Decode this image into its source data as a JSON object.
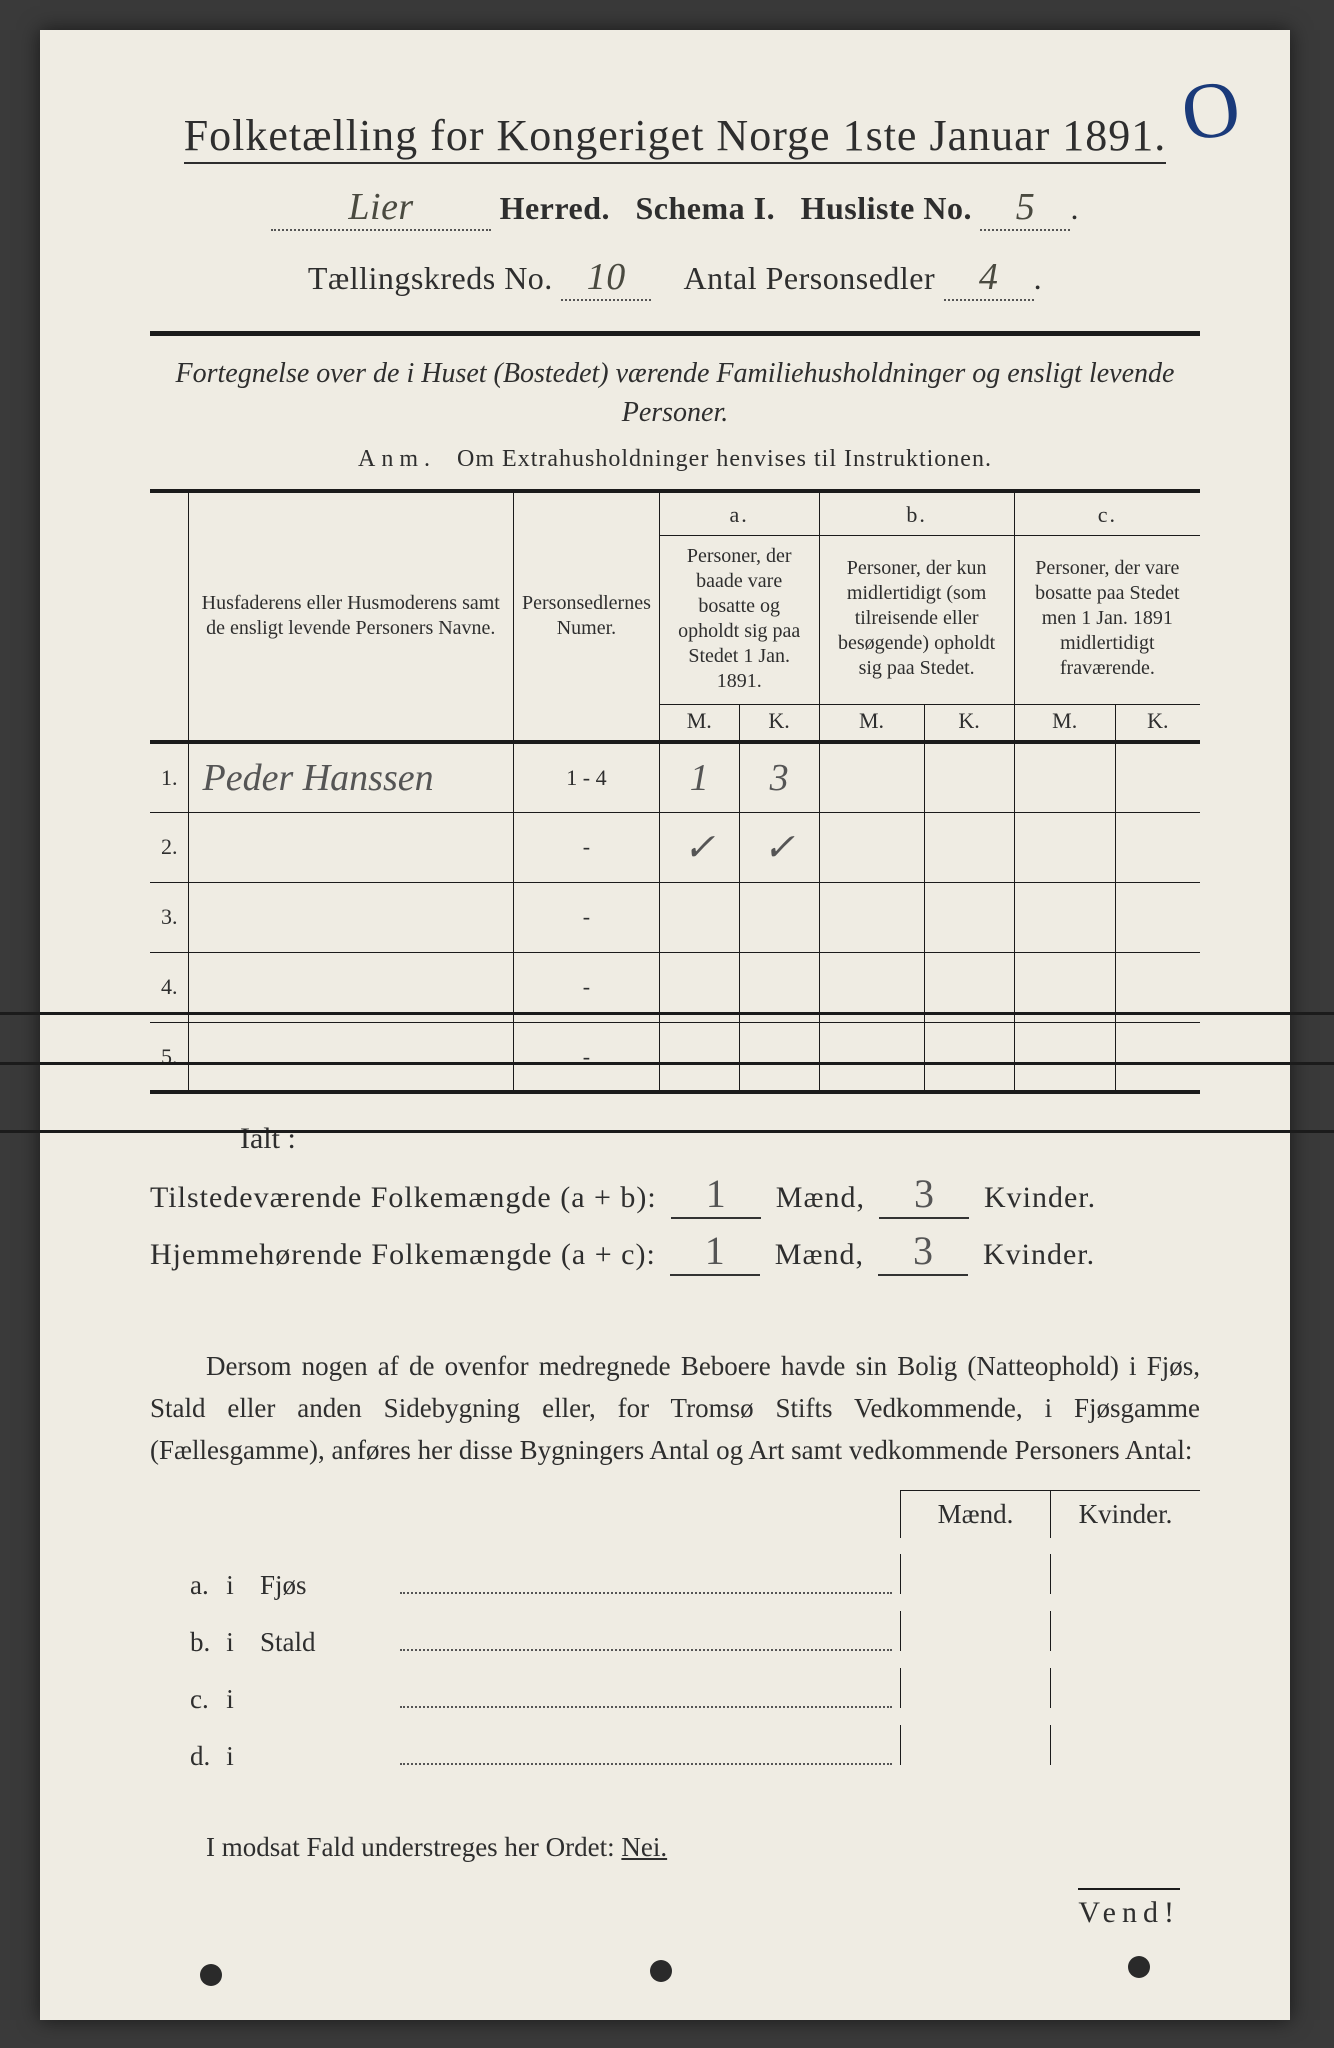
{
  "colors": {
    "paper": "#efece3",
    "ink": "#2e2e2e",
    "rule": "#1b1b1b",
    "hand": "#555555",
    "annotation": "#1a3a7a",
    "backdrop": "#3a3a3a"
  },
  "typography": {
    "title_fontsize_pt": 33,
    "subhead_fontsize_pt": 24,
    "body_fontsize_pt": 20,
    "hand_fontsize_pt": 28,
    "font_family_serif": "Georgia / Times-like",
    "font_family_hand": "cursive script"
  },
  "header": {
    "title_prefix": "Folketælling for Kongeriget Norge 1ste Januar ",
    "year": "1891.",
    "herred_handwritten": "Lier",
    "herred_label": "Herred.",
    "schema_label": "Schema I.",
    "husliste_label": "Husliste No.",
    "husliste_no": "5",
    "kreds_label_pre": "Tællingskreds No.",
    "kreds_no": "10",
    "personsedler_label": "Antal Personsedler",
    "personsedler_no": "4"
  },
  "intro": {
    "line": "Fortegnelse over de i Huset (Bostedet) værende Familiehusholdninger og ensligt levende Personer.",
    "anm_label": "Anm.",
    "anm_text": "Om Extrahusholdninger henvises til Instruktionen."
  },
  "table": {
    "col_name": "Husfaderens eller Husmoderens samt de ensligt levende Personers Navne.",
    "col_numer": "Personsedlernes Numer.",
    "group_letters": {
      "a": "a.",
      "b": "b.",
      "c": "c."
    },
    "col_a": "Personer, der baade vare bosatte og opholdt sig paa Stedet 1 Jan. 1891.",
    "col_b": "Personer, der kun midlertidigt (som tilreisende eller besøgende) opholdt sig paa Stedet.",
    "col_c": "Personer, der vare bosatte paa Stedet men 1 Jan. 1891 midlertidigt fraværende.",
    "mk": {
      "m": "M.",
      "k": "K."
    },
    "rows": [
      {
        "idx": "1.",
        "name_hand": "Peder Hanssen",
        "numer": "1 - 4",
        "aM": "1",
        "aK": "3",
        "bM": "",
        "bK": "",
        "cM": "",
        "cK": ""
      },
      {
        "idx": "2.",
        "name_hand": "",
        "numer": "-",
        "aM": "✓",
        "aK": "✓",
        "bM": "",
        "bK": "",
        "cM": "",
        "cK": ""
      },
      {
        "idx": "3.",
        "name_hand": "",
        "numer": "-",
        "aM": "",
        "aK": "",
        "bM": "",
        "bK": "",
        "cM": "",
        "cK": ""
      },
      {
        "idx": "4.",
        "name_hand": "",
        "numer": "-",
        "aM": "",
        "aK": "",
        "bM": "",
        "bK": "",
        "cM": "",
        "cK": ""
      },
      {
        "idx": "5.",
        "name_hand": "",
        "numer": "-",
        "aM": "",
        "aK": "",
        "bM": "",
        "bK": "",
        "cM": "",
        "cK": ""
      }
    ],
    "col_widths_pct": {
      "idx": 3,
      "name": 31,
      "numer": 12,
      "aM": 8,
      "aK": 8,
      "bM": 9,
      "bK": 9,
      "cM": 10,
      "cK": 10
    }
  },
  "totals": {
    "ialt": "Ialt :",
    "line1_pre": "Tilstedeværende Folkemængde (a + b):",
    "line1_m": "1",
    "maend": "Mænd,",
    "line1_k": "3",
    "kvinder": "Kvinder.",
    "line2_pre": "Hjemmehørende Folkemængde (a + c):",
    "line2_m": "1",
    "line2_k": "3"
  },
  "bodytext": "Dersom nogen af de ovenfor medregnede Beboere havde sin Bolig (Natteophold) i Fjøs, Stald eller anden Sidebygning eller, for Tromsø Stifts Vedkommende, i Fjøsgamme (Fællesgamme), anføres her disse Bygningers Antal og Art samt vedkommende Personers Antal:",
  "mk_headers": {
    "m": "Mænd.",
    "k": "Kvinder."
  },
  "abcd": [
    {
      "k": "a.",
      "i": "i",
      "lab": "Fjøs"
    },
    {
      "k": "b.",
      "i": "i",
      "lab": "Stald"
    },
    {
      "k": "c.",
      "i": "i",
      "lab": ""
    },
    {
      "k": "d.",
      "i": "i",
      "lab": ""
    }
  ],
  "nei": {
    "pre": "I modsat Fald understreges her Ordet: ",
    "word": "Nei."
  },
  "vend": "Vend!",
  "corner_mark": "O"
}
